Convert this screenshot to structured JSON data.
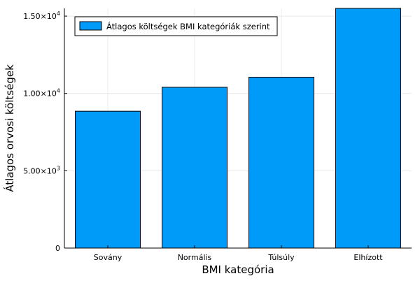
{
  "chart_data": {
    "type": "bar",
    "categories": [
      "Sovány",
      "Normális",
      "Túlsúly",
      "Elhízott"
    ],
    "series": [
      {
        "name": "Átlagos költségek BMI kategóriák szerint",
        "values": [
          8850,
          10400,
          11050,
          15500
        ],
        "color": "#009AF9"
      }
    ],
    "xlabel": "BMI kategória",
    "ylabel": "Átlagos orvosi költségek",
    "ylim": [
      0,
      15500
    ],
    "yticks": [
      {
        "value": 0,
        "mantissa": "0",
        "exponent": ""
      },
      {
        "value": 5000,
        "mantissa": "5.00×10",
        "exponent": "3"
      },
      {
        "value": 10000,
        "mantissa": "1.00×10",
        "exponent": "4"
      },
      {
        "value": 15000,
        "mantissa": "1.50×10",
        "exponent": "4"
      }
    ],
    "grid": true,
    "legend_position": "top-left"
  }
}
